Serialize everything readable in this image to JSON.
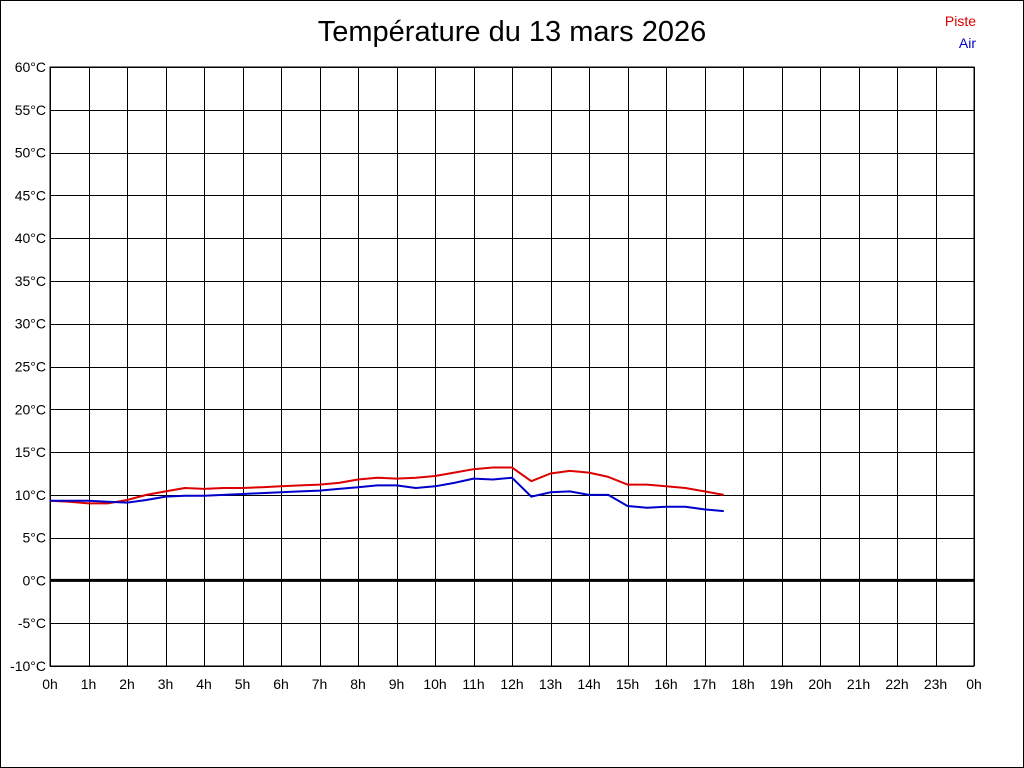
{
  "chart_data": {
    "type": "line",
    "title": "Température du 13 mars 2026",
    "xlabel": "",
    "ylabel": "",
    "ylim": [
      -10,
      60
    ],
    "xlim": [
      0,
      24
    ],
    "grid": true,
    "legend_position": "top-right",
    "y_ticks": [
      "60°C",
      "55°C",
      "50°C",
      "45°C",
      "40°C",
      "35°C",
      "30°C",
      "25°C",
      "20°C",
      "15°C",
      "10°C",
      "5°C",
      "0°C",
      "-5°C",
      "-10°C"
    ],
    "x_ticks": [
      "0h",
      "1h",
      "2h",
      "3h",
      "4h",
      "5h",
      "6h",
      "7h",
      "8h",
      "9h",
      "10h",
      "11h",
      "12h",
      "13h",
      "14h",
      "15h",
      "16h",
      "17h",
      "18h",
      "19h",
      "20h",
      "21h",
      "22h",
      "23h",
      "0h"
    ],
    "series": [
      {
        "name": "Piste",
        "color": "#dd0000",
        "x": [
          0,
          0.5,
          1,
          1.5,
          2,
          2.5,
          3,
          3.5,
          4,
          4.5,
          5,
          5.5,
          6,
          6.5,
          7,
          7.5,
          8,
          8.5,
          9,
          9.5,
          10,
          10.5,
          11,
          11.5,
          12,
          12.5,
          13,
          13.5,
          14,
          14.5,
          15,
          15.5,
          16,
          16.5,
          17,
          17.5
        ],
        "values": [
          9.3,
          9.2,
          9.0,
          9.0,
          9.4,
          10.0,
          10.4,
          10.8,
          10.7,
          10.8,
          10.8,
          10.9,
          11.0,
          11.1,
          11.2,
          11.4,
          11.8,
          12.0,
          11.9,
          12.0,
          12.2,
          12.6,
          13.0,
          13.2,
          13.2,
          11.6,
          12.5,
          12.8,
          12.6,
          12.1,
          11.2,
          11.2,
          11.0,
          10.8,
          10.4,
          10.0
        ]
      },
      {
        "name": "Air",
        "color": "#0000cc",
        "x": [
          0,
          0.5,
          1,
          1.5,
          2,
          2.5,
          3,
          3.5,
          4,
          4.5,
          5,
          5.5,
          6,
          6.5,
          7,
          7.5,
          8,
          8.5,
          9,
          9.5,
          10,
          10.5,
          11,
          11.5,
          12,
          12.5,
          13,
          13.5,
          14,
          14.5,
          15,
          15.5,
          16,
          16.5,
          17,
          17.5
        ],
        "values": [
          9.3,
          9.3,
          9.3,
          9.2,
          9.1,
          9.4,
          9.8,
          9.9,
          9.9,
          10.0,
          10.1,
          10.2,
          10.3,
          10.4,
          10.5,
          10.7,
          10.9,
          11.1,
          11.1,
          10.8,
          11.0,
          11.4,
          11.9,
          11.8,
          12.0,
          9.8,
          10.3,
          10.4,
          10.0,
          10.0,
          8.7,
          8.5,
          8.6,
          8.6,
          8.3,
          8.1
        ]
      }
    ]
  }
}
